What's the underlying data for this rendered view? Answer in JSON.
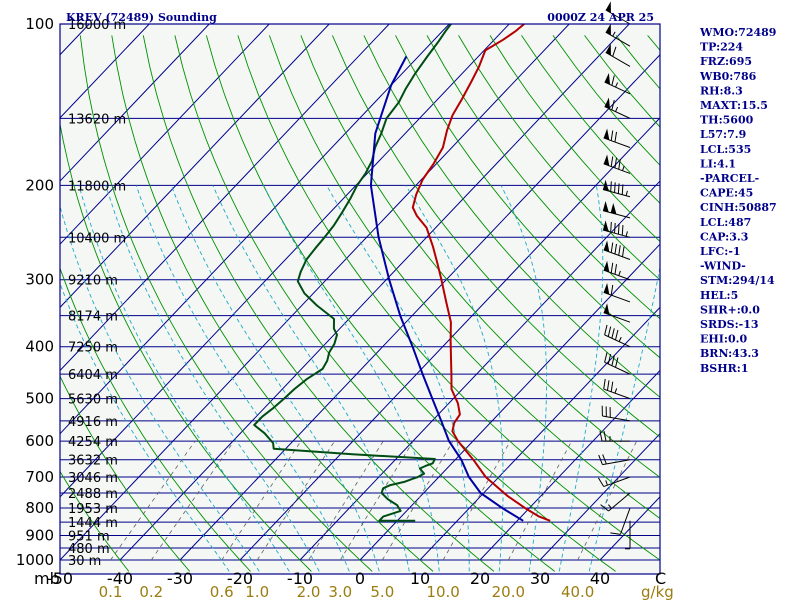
{
  "header": {
    "station_title": "KREV (72489) Sounding",
    "time_title": "0000Z 24 APR 25"
  },
  "chart_data": {
    "type": "line",
    "diagram": "skew-t log-p",
    "pressure_range": [
      1000,
      100
    ],
    "temp_range": [
      -50,
      50
    ],
    "axis_unit_label": "mb",
    "mixing_ratio_unit": "g/kg",
    "pressure_ticks": [
      {
        "p": 100,
        "label": "100"
      },
      {
        "p": 200,
        "label": "200"
      },
      {
        "p": 300,
        "label": "300"
      },
      {
        "p": 400,
        "label": "400"
      },
      {
        "p": 500,
        "label": "500"
      },
      {
        "p": 600,
        "label": "600"
      },
      {
        "p": 700,
        "label": "700"
      },
      {
        "p": 800,
        "label": "800"
      },
      {
        "p": 900,
        "label": "900"
      },
      {
        "p": 1000,
        "label": "1000"
      }
    ],
    "height_labels": [
      {
        "p": 100,
        "label": "16000 m"
      },
      {
        "p": 150,
        "label": "13620 m"
      },
      {
        "p": 200,
        "label": "11800 m"
      },
      {
        "p": 250,
        "label": "10400 m"
      },
      {
        "p": 300,
        "label": "9210 m"
      },
      {
        "p": 350,
        "label": "8174 m"
      },
      {
        "p": 400,
        "label": "7250 m"
      },
      {
        "p": 450,
        "label": "6404 m"
      },
      {
        "p": 500,
        "label": "5630 m"
      },
      {
        "p": 550,
        "label": "4916 m"
      },
      {
        "p": 600,
        "label": "4254 m"
      },
      {
        "p": 650,
        "label": "3632 m"
      },
      {
        "p": 700,
        "label": "3046 m"
      },
      {
        "p": 750,
        "label": "2488 m"
      },
      {
        "p": 800,
        "label": "1953 m"
      },
      {
        "p": 850,
        "label": "1444 m"
      },
      {
        "p": 900,
        "label": "951 m"
      },
      {
        "p": 950,
        "label": "480 m"
      },
      {
        "p": 1000,
        "label": "30 m"
      }
    ],
    "temp_ticks": [
      {
        "t": -50,
        "label": "-50"
      },
      {
        "t": -40,
        "label": "-40"
      },
      {
        "t": -30,
        "label": "-30"
      },
      {
        "t": -20,
        "label": "-20"
      },
      {
        "t": -10,
        "label": "-10"
      },
      {
        "t": 0,
        "label": "0"
      },
      {
        "t": 10,
        "label": "10"
      },
      {
        "t": 20,
        "label": "20"
      },
      {
        "t": 30,
        "label": "30"
      },
      {
        "t": 40,
        "label": "40"
      }
    ],
    "temp_end_label": "C",
    "mixing_ratio_ticks": [
      {
        "w": 0.1,
        "label": "0.1"
      },
      {
        "w": 0.2,
        "label": "0.2"
      },
      {
        "w": 0.6,
        "label": "0.6"
      },
      {
        "w": 1.0,
        "label": "1.0"
      },
      {
        "w": 2.0,
        "label": "2.0"
      },
      {
        "w": 3.0,
        "label": "3.0"
      },
      {
        "w": 5.0,
        "label": "5.0"
      },
      {
        "w": 10.0,
        "label": "10.0"
      },
      {
        "w": 20.0,
        "label": "20.0"
      },
      {
        "w": 40.0,
        "label": "40.0"
      }
    ],
    "series": [
      {
        "name": "Temperature",
        "color": "#b40000",
        "points": [
          [
            845,
            25.5
          ],
          [
            830,
            23.0
          ],
          [
            800,
            19.3
          ],
          [
            760,
            14.5
          ],
          [
            700,
            7.8
          ],
          [
            650,
            3.0
          ],
          [
            600,
            -2.5
          ],
          [
            575,
            -5.0
          ],
          [
            555,
            -6.0
          ],
          [
            535,
            -6.4
          ],
          [
            510,
            -8.5
          ],
          [
            480,
            -11.8
          ],
          [
            450,
            -14.2
          ],
          [
            420,
            -16.8
          ],
          [
            390,
            -19.6
          ],
          [
            360,
            -22.5
          ],
          [
            330,
            -26.5
          ],
          [
            300,
            -30.8
          ],
          [
            280,
            -34.0
          ],
          [
            260,
            -37.5
          ],
          [
            240,
            -41.5
          ],
          [
            228,
            -45.0
          ],
          [
            220,
            -47.0
          ],
          [
            208,
            -48.5
          ],
          [
            195,
            -49.8
          ],
          [
            182,
            -50.5
          ],
          [
            170,
            -51.5
          ],
          [
            158,
            -53.5
          ],
          [
            148,
            -55.0
          ],
          [
            138,
            -56.0
          ],
          [
            128,
            -57.2
          ],
          [
            120,
            -58.3
          ],
          [
            112,
            -59.8
          ],
          [
            107,
            -58.5
          ],
          [
            103,
            -57.8
          ],
          [
            100,
            -57.5
          ]
        ]
      },
      {
        "name": "Dewpoint",
        "color": "#004d14",
        "points": [
          [
            845,
            3.0
          ],
          [
            845,
            -3.0
          ],
          [
            830,
            -3.0
          ],
          [
            810,
            -1.0
          ],
          [
            790,
            -2.5
          ],
          [
            770,
            -5.0
          ],
          [
            750,
            -7.0
          ],
          [
            735,
            -7.5
          ],
          [
            725,
            -6.8
          ],
          [
            715,
            -5.0
          ],
          [
            705,
            -4.0
          ],
          [
            700,
            -3.5
          ],
          [
            690,
            -3.0
          ],
          [
            675,
            -4.5
          ],
          [
            668,
            -4.0
          ],
          [
            660,
            -3.2
          ],
          [
            648,
            -3.5
          ],
          [
            635,
            -18.0
          ],
          [
            620,
            -32.0
          ],
          [
            605,
            -33.0
          ],
          [
            580,
            -36.0
          ],
          [
            560,
            -39.0
          ],
          [
            540,
            -39.0
          ],
          [
            520,
            -38.5
          ],
          [
            500,
            -38.2
          ],
          [
            480,
            -38.0
          ],
          [
            460,
            -37.5
          ],
          [
            440,
            -36.5
          ],
          [
            425,
            -37.0
          ],
          [
            410,
            -38.0
          ],
          [
            395,
            -38.5
          ],
          [
            380,
            -39.5
          ],
          [
            370,
            -41.0
          ],
          [
            355,
            -42.5
          ],
          [
            335,
            -47.5
          ],
          [
            318,
            -51.5
          ],
          [
            302,
            -54.5
          ],
          [
            290,
            -55.5
          ],
          [
            275,
            -56.5
          ],
          [
            262,
            -56.8
          ],
          [
            250,
            -57.0
          ],
          [
            238,
            -57.3
          ],
          [
            225,
            -58.0
          ],
          [
            212,
            -58.8
          ],
          [
            200,
            -59.8
          ],
          [
            190,
            -60.3
          ],
          [
            180,
            -61.2
          ],
          [
            170,
            -62.8
          ],
          [
            160,
            -64.0
          ],
          [
            150,
            -65.5
          ],
          [
            140,
            -66.0
          ],
          [
            132,
            -67.0
          ],
          [
            124,
            -67.8
          ],
          [
            115,
            -68.5
          ],
          [
            108,
            -69.0
          ],
          [
            103,
            -69.5
          ],
          [
            100,
            -69.7
          ]
        ]
      },
      {
        "name": "Parcel",
        "color": "#0000a5",
        "points": [
          [
            845,
            21.0
          ],
          [
            800,
            15.5
          ],
          [
            750,
            9.5
          ],
          [
            700,
            5.0
          ],
          [
            650,
            1.0
          ],
          [
            600,
            -4.0
          ],
          [
            550,
            -8.5
          ],
          [
            500,
            -13.5
          ],
          [
            450,
            -19.0
          ],
          [
            400,
            -25.0
          ],
          [
            350,
            -32.0
          ],
          [
            300,
            -39.5
          ],
          [
            250,
            -48.0
          ],
          [
            200,
            -57.5
          ],
          [
            160,
            -65.0
          ],
          [
            130,
            -70.0
          ],
          [
            115,
            -72.0
          ]
        ]
      }
    ]
  },
  "indices": [
    {
      "label": "WMO:72489"
    },
    {
      "label": "TP:224"
    },
    {
      "label": "FRZ:695"
    },
    {
      "label": "WB0:786"
    },
    {
      "label": "RH:8.3"
    },
    {
      "label": "MAXT:15.5"
    },
    {
      "label": "TH:5600"
    },
    {
      "label": "L57:7.9"
    },
    {
      "label": "LCL:535"
    },
    {
      "label": "LI:4.1"
    },
    {
      "label": "-PARCEL-"
    },
    {
      "label": "CAPE:45"
    },
    {
      "label": "CINH:50887"
    },
    {
      "label": "LCL:487"
    },
    {
      "label": "CAP:3.3"
    },
    {
      "label": "LFC:-1"
    },
    {
      "label": "-WIND-"
    },
    {
      "label": "STM:294/14"
    },
    {
      "label": "HEL:5"
    },
    {
      "label": "SHR+:0.0"
    },
    {
      "label": "SRDS:-13"
    },
    {
      "label": "EHI:0.0"
    },
    {
      "label": "BRN:43.3"
    },
    {
      "label": "BSHR:1"
    }
  ],
  "wind_profile": [
    {
      "p": 100,
      "dir": 300,
      "kt": 50
    },
    {
      "p": 110,
      "dir": 300,
      "kt": 55
    },
    {
      "p": 120,
      "dir": 300,
      "kt": 60
    },
    {
      "p": 135,
      "dir": 295,
      "kt": 65
    },
    {
      "p": 150,
      "dir": 295,
      "kt": 65
    },
    {
      "p": 170,
      "dir": 290,
      "kt": 70
    },
    {
      "p": 190,
      "dir": 290,
      "kt": 85
    },
    {
      "p": 210,
      "dir": 285,
      "kt": 95
    },
    {
      "p": 230,
      "dir": 285,
      "kt": 100
    },
    {
      "p": 250,
      "dir": 285,
      "kt": 95
    },
    {
      "p": 275,
      "dir": 290,
      "kt": 90
    },
    {
      "p": 300,
      "dir": 290,
      "kt": 75
    },
    {
      "p": 330,
      "dir": 290,
      "kt": 60
    },
    {
      "p": 360,
      "dir": 290,
      "kt": 50
    },
    {
      "p": 400,
      "dir": 295,
      "kt": 45
    },
    {
      "p": 450,
      "dir": 295,
      "kt": 40
    },
    {
      "p": 500,
      "dir": 290,
      "kt": 35
    },
    {
      "p": 550,
      "dir": 280,
      "kt": 30
    },
    {
      "p": 600,
      "dir": 270,
      "kt": 25
    },
    {
      "p": 650,
      "dir": 260,
      "kt": 20
    },
    {
      "p": 700,
      "dir": 250,
      "kt": 15
    },
    {
      "p": 750,
      "dir": 230,
      "kt": 15
    },
    {
      "p": 800,
      "dir": 200,
      "kt": 10
    },
    {
      "p": 845,
      "dir": 180,
      "kt": 5
    }
  ],
  "colors": {
    "background": "#f4f7f4",
    "isobar": "#00008b",
    "isotherm": "#00008b",
    "dry_adiabat": "#009000",
    "moist_adiabat": "#1fa8c8",
    "mixing_ratio": "#606060",
    "label_text": "#00008b",
    "mixing_ratio_label": "#9b7d10"
  }
}
